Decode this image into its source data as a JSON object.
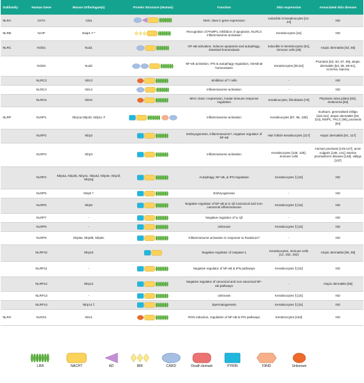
{
  "header": {
    "subfamily": "Subfamily",
    "human_gene": "Human Gene",
    "mouse": "Mouse Orthologue(s)",
    "structure": "Protein Structure (Human)",
    "function": "Function",
    "skin": "Skin expression",
    "disease": "Associated skin disease"
  },
  "rows": [
    {
      "subfamily": "NLRA",
      "gene": "CIITA",
      "mouse": "Ciita",
      "function": "MHC class II gene expression",
      "skin": "Inducible in keratinocytes [21-24]",
      "disease": "ND"
    },
    {
      "subfamily": "NLRB",
      "gene": "NAIP",
      "mouse": "Naip1-7 *",
      "function": "Recognition of PAMPs, inhibition of apoptosis, NLRC4 inflammasome activation",
      "skin": "Keratinocytes [44]",
      "disease": "ND"
    },
    {
      "subfamily": "NLRC",
      "gene": "NOD1",
      "mouse": "Nod1",
      "function": "NF-κB activation, induces apoptosis and autophagy, intestinal homeostasis",
      "skin": "Inducible in keratinocytes [51], immune cells [49]",
      "disease": "Atopic dermatitis [53, 55]"
    },
    {
      "subfamily": "",
      "gene": "NOD2",
      "mouse": "Nod2",
      "function": "NF-κB activation, IFN & autophagy regulation, intestinal homeostasis",
      "skin": "Keratinocytes [50,52]",
      "disease": "Psoriasis [62, 63, 67, 69], atopic dermatitis [54, 55, 59-61], eczema, leprosy"
    },
    {
      "subfamily": "",
      "gene": "NLRC3",
      "mouse": "Nlrc3",
      "function": "Inhibition of T cells",
      "skin": "-",
      "disease": "ND"
    },
    {
      "subfamily": "",
      "gene": "NLRC4",
      "mouse": "Nlrc4",
      "function": "Inflammasome activation",
      "skin": "-",
      "disease": "ND"
    },
    {
      "subfamily": "",
      "gene": "NLRC5",
      "mouse": "Nlrc5",
      "function": "MHC class I expression, innate immune response regulation",
      "skin": "Keratinocytes, fibroblasts [70]",
      "disease": "Pityriasis rubra pilaris [83], melanoma [84]"
    },
    {
      "subfamily": "NLRP",
      "gene": "NLRP1",
      "mouse": "Nlrp1a,Nlrp1b, Nlrp1c #",
      "function": "Inflammasome activation",
      "skin": "Keratinocytes [87, 96, 108]",
      "disease": "Sunburn, generalised vitiligo [110,111], atopic dermatitis [93, 114], MSPC, FKLC [96], psoriasis [94]"
    },
    {
      "subfamily": "",
      "gene": "NLRP2",
      "mouse": "Nlrp2",
      "function": "Embryogenesis, inflammasome?, negative regulator of NF-κB",
      "skin": "Hair follicle keratinocytes [117]",
      "disease": "Atopic dermatitis [91, 117]"
    },
    {
      "subfamily": "",
      "gene": "NLRP3",
      "mouse": "Nlrp3",
      "function": "Inflammasome activation",
      "skin": "Keratinocytes [128, 129], immune cells",
      "disease": "Human psoriasis [145-147], acne vulgaris [138, 141], Murine psoriasiform disease [148], vitiligo [137]"
    },
    {
      "subfamily": "",
      "gene": "NLRP4",
      "mouse": "Nlrp4a, Nlrp4b, Nlrp4c, Nlrp4d, Nlrp4e, Nlrp4f, Nlrp4g",
      "function": "Autophagy, NF-κB, & IFN regulation",
      "skin": "Keratinocytes § [15]",
      "disease": "ND"
    },
    {
      "subfamily": "",
      "gene": "NLRP5",
      "mouse": "Nlrp5 †",
      "function": "Embryogenesis",
      "skin": "-",
      "disease": "ND"
    },
    {
      "subfamily": "",
      "gene": "NLRP6",
      "mouse": "Nlrp6",
      "function": "Negative regulator of NF-κB & IL-1β Canonical and non-canonical inflammasome",
      "skin": "Keratinocytes § [15]",
      "disease": "ND"
    },
    {
      "subfamily": "",
      "gene": "NLRP7",
      "mouse": "-",
      "function": "Negative regulator of IL-1β",
      "skin": "-",
      "disease": "ND"
    },
    {
      "subfamily": "",
      "gene": "NLRP8",
      "mouse": "-",
      "function": "Unknown",
      "skin": "Keratinocytes § [15]",
      "disease": "ND"
    },
    {
      "subfamily": "",
      "gene": "NLRP9",
      "mouse": "Nlrp9a, Nlrp9b, Nlrp9c",
      "function": "Inflammasome activation in response to Roatvirus?",
      "skin": "-",
      "disease": "ND"
    },
    {
      "subfamily": "",
      "gene": "NLRP10",
      "mouse": "Nlrp10",
      "function": "Negative regulator of caspase-1",
      "skin": "Keratinocytes, immune cells [14, 152, 153]",
      "disease": "Atopic dermatitis [55, 95]"
    },
    {
      "subfamily": "",
      "gene": "NLRP11",
      "mouse": "-",
      "function": "Negative regulator of NF-κB & IFN pathways",
      "skin": "Keratinocytes § [15]",
      "disease": "ND"
    },
    {
      "subfamily": "",
      "gene": "NLRP12",
      "mouse": "Nlrp12",
      "function": "Negative regulator of canonical and non-canonical NF-κB pathways",
      "skin": "-",
      "disease": "Atopic dermatitis [55]"
    },
    {
      "subfamily": "",
      "gene": "NLRP13",
      "mouse": "-",
      "function": "Unknown",
      "skin": "Keratinocytes § [15]",
      "disease": "ND"
    },
    {
      "subfamily": "",
      "gene": "NLRP14",
      "mouse": "Nlrp14 ‡",
      "function": "Spermatogenesis",
      "skin": "Keratinocytes § [15]",
      "disease": "ND"
    },
    {
      "subfamily": "NLRX",
      "gene": "NLRX1",
      "mouse": "Nlrx1",
      "function": "ROS induction, regulation of NF-κB & IFN pathways",
      "skin": "Keratinocytes [162]",
      "disease": "ND"
    }
  ],
  "legend": [
    {
      "label": "LRR",
      "icon": "lrr-icon"
    },
    {
      "label": "NACHT",
      "icon": "nacht-icon"
    },
    {
      "label": "AD",
      "icon": "ad-icon"
    },
    {
      "label": "BIR",
      "icon": "bir-icon"
    },
    {
      "label": "CARD",
      "icon": "card-icon"
    },
    {
      "label": "Death domain",
      "icon": "death-domain-icon"
    },
    {
      "label": "PYRIN",
      "icon": "pyrin-icon"
    },
    {
      "label": "FIIND",
      "icon": "fiind-icon"
    },
    {
      "label": "Unknown",
      "icon": "unknown-domain-icon"
    }
  ],
  "colors": {
    "header_bg": "#14a38f",
    "row_shade": "#e6e6e6",
    "lrr": "#55b035",
    "nacht": "#fbd25a",
    "ad": "#c58fd6",
    "bir": "#fbe88a",
    "card": "#a6bfe3",
    "death": "#ed7373",
    "pyrin": "#1fb7dd",
    "fiind": "#f7b08a",
    "unknown": "#ec6a2a"
  },
  "domain_structures": [
    [
      "card",
      "ad",
      "nacht",
      "lrr"
    ],
    [
      "bir",
      "bir",
      "bir",
      "nacht",
      "lrr"
    ],
    [
      "card",
      "nacht",
      "lrr"
    ],
    [
      "card",
      "card",
      "nacht",
      "lrr"
    ],
    [
      "unknown",
      "nacht",
      "lrr"
    ],
    [
      "card",
      "nacht",
      "lrr"
    ],
    [
      "unknown",
      "nacht",
      "lrr"
    ],
    [
      "pyrin",
      "nacht",
      "lrr",
      "fiind",
      "card"
    ],
    [
      "pyrin",
      "nacht",
      "lrr"
    ],
    [
      "pyrin",
      "nacht",
      "lrr"
    ],
    [
      "pyrin",
      "nacht",
      "lrr"
    ],
    [
      "pyrin",
      "nacht",
      "lrr"
    ],
    [
      "pyrin",
      "nacht",
      "lrr"
    ],
    [
      "pyrin",
      "nacht",
      "lrr"
    ],
    [
      "pyrin",
      "nacht",
      "lrr"
    ],
    [
      "pyrin",
      "nacht",
      "lrr"
    ],
    [
      "pyrin",
      "nacht"
    ],
    [
      "pyrin",
      "nacht",
      "lrr"
    ],
    [
      "pyrin",
      "nacht",
      "lrr"
    ],
    [
      "pyrin",
      "nacht",
      "lrr"
    ],
    [
      "pyrin",
      "nacht",
      "lrr"
    ],
    [
      "unknown",
      "nacht",
      "lrr"
    ]
  ]
}
